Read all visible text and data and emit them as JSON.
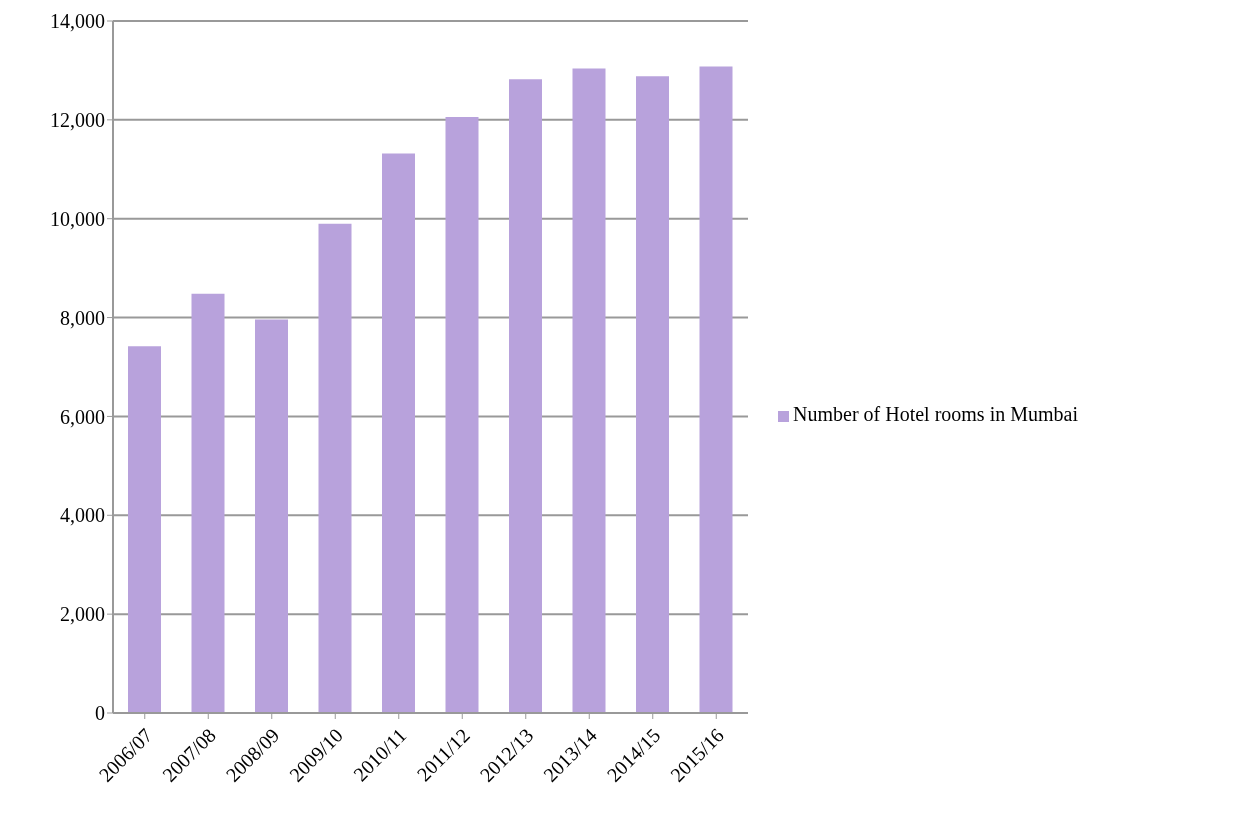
{
  "chart_data": {
    "type": "bar",
    "categories": [
      "2006/07",
      "2007/08",
      "2008/09",
      "2009/10",
      "2010/11",
      "2011/12",
      "2012/13",
      "2013/14",
      "2014/15",
      "2015/16"
    ],
    "series": [
      {
        "name": "Number of Hotel rooms in Mumbai",
        "color": "#b8a2dc",
        "values": [
          7420,
          8480,
          7960,
          9900,
          11320,
          12060,
          12820,
          13040,
          12880,
          13080
        ]
      }
    ],
    "ylim": [
      0,
      14000
    ],
    "yticks": [
      {
        "value": 0,
        "label": "0"
      },
      {
        "value": 2000,
        "label": "2,000"
      },
      {
        "value": 4000,
        "label": "4,000"
      },
      {
        "value": 6000,
        "label": "6,000"
      },
      {
        "value": 8000,
        "label": "8,000"
      },
      {
        "value": 10000,
        "label": "10,000"
      },
      {
        "value": 12000,
        "label": "12,000"
      },
      {
        "value": 14000,
        "label": "14,000"
      }
    ],
    "grid": "y",
    "legend": "right"
  }
}
